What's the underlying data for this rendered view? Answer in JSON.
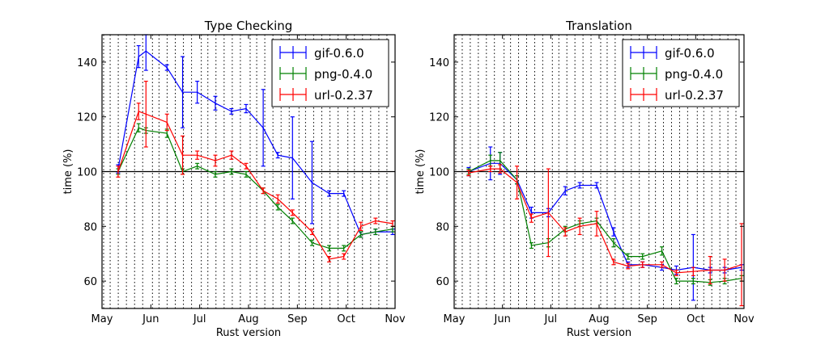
{
  "chart_data": [
    {
      "type": "line",
      "title": "Type Checking",
      "xlabel": "Rust version",
      "ylabel": "time (%)",
      "ylim": [
        50,
        150
      ],
      "yticks": [
        60,
        80,
        100,
        120,
        140
      ],
      "xlim": [
        0,
        6
      ],
      "xticks": [
        {
          "label": "May",
          "x": 0
        },
        {
          "label": "Jun",
          "x": 1
        },
        {
          "label": "Jul",
          "x": 2
        },
        {
          "label": "Aug",
          "x": 3
        },
        {
          "label": "Sep",
          "x": 4
        },
        {
          "label": "Oct",
          "x": 5
        },
        {
          "label": "Nov",
          "x": 6
        }
      ],
      "reference_line": 100,
      "grid": "vertical dotted lines at each release",
      "legend_position": "top-right",
      "x": [
        0.33,
        0.75,
        0.9,
        1.33,
        1.65,
        1.95,
        2.32,
        2.65,
        2.95,
        3.3,
        3.6,
        3.9,
        4.3,
        4.65,
        4.95,
        5.3,
        5.6,
        5.95
      ],
      "series": [
        {
          "name": "gif-0.6.0",
          "color": "#0000ff",
          "values": [
            101,
            142,
            144,
            138,
            129,
            129,
            125,
            122,
            123,
            116,
            106,
            105,
            96,
            92,
            92,
            77,
            78,
            78
          ],
          "errors": [
            1.5,
            4,
            7,
            1,
            13,
            4,
            2.5,
            1,
            1.5,
            14,
            1,
            15,
            15,
            1,
            1,
            1,
            1,
            1
          ]
        },
        {
          "name": "png-0.4.0",
          "color": "#008000",
          "values": [
            100,
            116,
            115,
            114,
            100,
            102,
            99,
            100,
            99,
            93,
            87,
            82,
            74,
            72,
            72,
            77,
            78,
            79
          ],
          "errors": [
            1,
            1.5,
            1,
            1.5,
            1,
            1,
            1,
            1,
            1,
            1,
            1,
            1,
            1,
            1,
            1,
            1,
            1,
            1
          ]
        },
        {
          "name": "url-0.2.37",
          "color": "#ff0000",
          "values": [
            100,
            122,
            121,
            118,
            106,
            106,
            104,
            106,
            102,
            93,
            90,
            85,
            78,
            68,
            69,
            80,
            82,
            81
          ],
          "errors": [
            2,
            3,
            12,
            3,
            7,
            1.5,
            2,
            1.5,
            1,
            1,
            1.5,
            1,
            1,
            1,
            1,
            1.5,
            1,
            1
          ]
        }
      ]
    },
    {
      "type": "line",
      "title": "Translation",
      "xlabel": "Rust version",
      "ylabel": "time (%)",
      "ylim": [
        50,
        150
      ],
      "yticks": [
        60,
        80,
        100,
        120,
        140
      ],
      "xlim": [
        0,
        6
      ],
      "xticks": [
        {
          "label": "May",
          "x": 0
        },
        {
          "label": "Jun",
          "x": 1
        },
        {
          "label": "Jul",
          "x": 2
        },
        {
          "label": "Aug",
          "x": 3
        },
        {
          "label": "Sep",
          "x": 4
        },
        {
          "label": "Oct",
          "x": 5
        },
        {
          "label": "Nov",
          "x": 6
        }
      ],
      "reference_line": 100,
      "grid": "vertical dotted lines at each release",
      "legend_position": "top-right",
      "x": [
        0.3,
        0.75,
        0.95,
        1.3,
        1.6,
        1.95,
        2.3,
        2.6,
        2.95,
        3.3,
        3.6,
        3.9,
        4.3,
        4.6,
        4.95,
        5.3,
        5.6,
        5.95
      ],
      "series": [
        {
          "name": "gif-0.6.0",
          "color": "#0000ff",
          "values": [
            100,
            103,
            103,
            97,
            85,
            85,
            93,
            95,
            95,
            78,
            66,
            66,
            65,
            64,
            65,
            64,
            64,
            65
          ],
          "errors": [
            1.5,
            6,
            4,
            1.5,
            2,
            1.5,
            1.5,
            1,
            1,
            1.5,
            1,
            1,
            1,
            1.5,
            12,
            1,
            1,
            1
          ]
        },
        {
          "name": "png-0.4.0",
          "color": "#008000",
          "values": [
            100,
            104,
            104,
            97,
            73,
            74,
            79,
            81,
            82,
            74,
            69,
            69,
            71,
            60,
            60,
            59.5,
            60,
            61
          ],
          "errors": [
            1,
            2,
            3,
            1.5,
            1,
            1.5,
            1,
            1,
            1,
            1.5,
            1,
            1,
            1.5,
            1,
            1,
            1,
            1,
            1
          ]
        },
        {
          "name": "url-0.2.37",
          "color": "#ff0000",
          "values": [
            99.5,
            101,
            101,
            96,
            83,
            85,
            78,
            80,
            81,
            67,
            65.5,
            66,
            66,
            63,
            63.5,
            64,
            64,
            66
          ],
          "errors": [
            1,
            1,
            1.5,
            6,
            1.5,
            16,
            1.5,
            3,
            4.5,
            1,
            1,
            1,
            1,
            1,
            1.5,
            5,
            4,
            15
          ]
        }
      ]
    }
  ]
}
